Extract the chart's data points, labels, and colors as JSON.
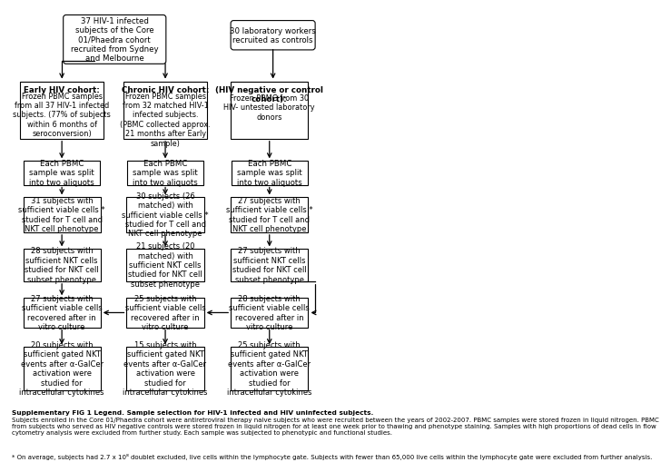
{
  "bg_color": "#ffffff",
  "title_bold": "Supplementary FIG 1 Legend. Sample selection for HIV-1 infected and HIV uninfected subjects.",
  "footnote1": "Subjects enrolled in the Core 01/Phaedra cohort were antiretroviral therapy naive subjects who were recruited between the years of 2002-2007. PBMC samples were stored frozen in liquid nitrogen. PBMC from subjects who served as HIV negative controls were stored frozen in liquid nitrogen for at least one week prior to thawing and phenotype staining. Samples with high proportions of dead cells in flow cytometry analysis were excluded from further study. Each sample was subjected to phenotypic and functional studies.",
  "footnote2": "* On average, subjects had 2.7 x 10⁸ doublet excluded, live cells within the lymphocyte gate. Subjects with fewer than 65,000 live cells within the lymphocyte gate were excluded from further analysis.",
  "top1_text": "37 HIV-1 infected\nsubjects of the Core\n01/Phaedra cohort\nrecruited from Sydney\nand Melbourne",
  "top2_text": "30 laboratory workers\nrecruited as controls",
  "c1r1_bold": "Early HIV cohort:",
  "c1r1_norm": "Frozen PBMC samples\nfrom all 37 HIV-1 infected\nsubjects. (77% of subjects\nwithin 6 months of\nseroconversion)",
  "c2r1_bold": "Chronic HIV cohort:",
  "c2r1_norm": "Frozen PBMC samples\nfrom 32 matched HIV-1\ninfected subjects.\n(PBMC collected approx.\n21 months after Early\nsample)",
  "c3r1_bold": "(HIV negative or control\ncohort):",
  "c3r1_norm": "Frozen PBMC from 30\nHIV- untested laboratory\ndonors",
  "split_text": "Each PBMC\nsample was split\ninto two aliquots",
  "c1r3_text": "31 subjects with\nsufficient viable cells *\nstudied for T cell and\nNKT cell phenotype",
  "c2r3_pre": "30 subjects (",
  "c2r3_bold": "26\nmatched",
  "c2r3_post": ") with\nsufficient viable cells *\nstudied for T cell and\nNKT cell phenotype",
  "c2r3_full": "30 subjects (26\nmatched) with\nsufficient viable cells *\nstudied for T cell and\nNKT cell phenotype",
  "c3r3_text": "27 subjects with\nsufficient viable cells *\nstudied for T cell and\nNKT cell phenotype",
  "c1r4_text": "28 subjects with\nsufficient NKT cells\nstudied for NKT cell\nsubset phenotype",
  "c2r4_text": "21 subjects (20\nmatched) with\nsufficient NKT cells\nstudied for NKT cell\nsubset phenotype",
  "c3r4_text": "27 subjects with\nsufficient NKT cells\nstudied for NKT cell\nsubset phenotype",
  "c1r5_text": "27 subjects with\nsufficient viable cells\nrecovered after in\nvitro culture",
  "c2r5_text": "25 subjects with\nsufficient viable cells\nrecovered after in\nvitro culture",
  "c3r5_text": "28 subjects with\nsufficient viable cells\nrecovered after in\nvitro culture",
  "c1r6_text": "20 subjects with\nsufficient gated NKT\nevents after α-GalCer\nactivation were\nstudied for\nintracellular cytokines",
  "c2r6_text": "15 subjects with\nsufficient gated NKT\nevents after α-GalCer\nactivation were\nstudied for\nintracellular cytokines",
  "c3r6_text": "25 subjects with\nsufficient gated NKT\nevents after α-GalCer\nactivation were\nstudied for\nintracellular cytokines"
}
